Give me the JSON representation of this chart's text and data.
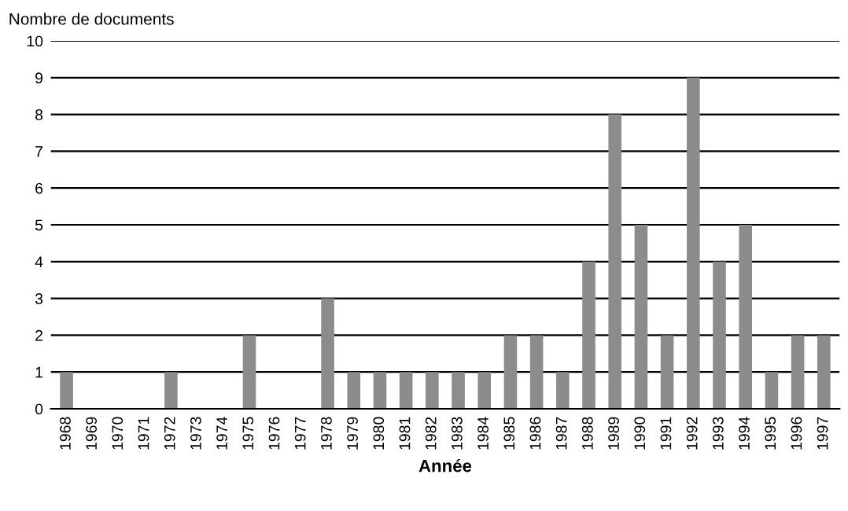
{
  "chart_data": {
    "type": "bar",
    "ylabel": "Nombre de documents",
    "xlabel": "Année",
    "categories": [
      "1968",
      "1969",
      "1970",
      "1971",
      "1972",
      "1973",
      "1974",
      "1975",
      "1976",
      "1977",
      "1978",
      "1979",
      "1980",
      "1981",
      "1982",
      "1983",
      "1984",
      "1985",
      "1986",
      "1987",
      "1988",
      "1989",
      "1990",
      "1991",
      "1992",
      "1993",
      "1994",
      "1995",
      "1996",
      "1997"
    ],
    "values": [
      1,
      0,
      0,
      0,
      1,
      0,
      0,
      2,
      0,
      0,
      3,
      1,
      1,
      1,
      1,
      1,
      1,
      2,
      2,
      1,
      4,
      8,
      5,
      2,
      9,
      4,
      5,
      1,
      2,
      2
    ],
    "color": "#8c8c8c",
    "ylim": [
      0,
      10
    ],
    "yticks": [
      0,
      1,
      2,
      3,
      4,
      5,
      6,
      7,
      8,
      9,
      10
    ],
    "grid": "y",
    "legend": false
  }
}
